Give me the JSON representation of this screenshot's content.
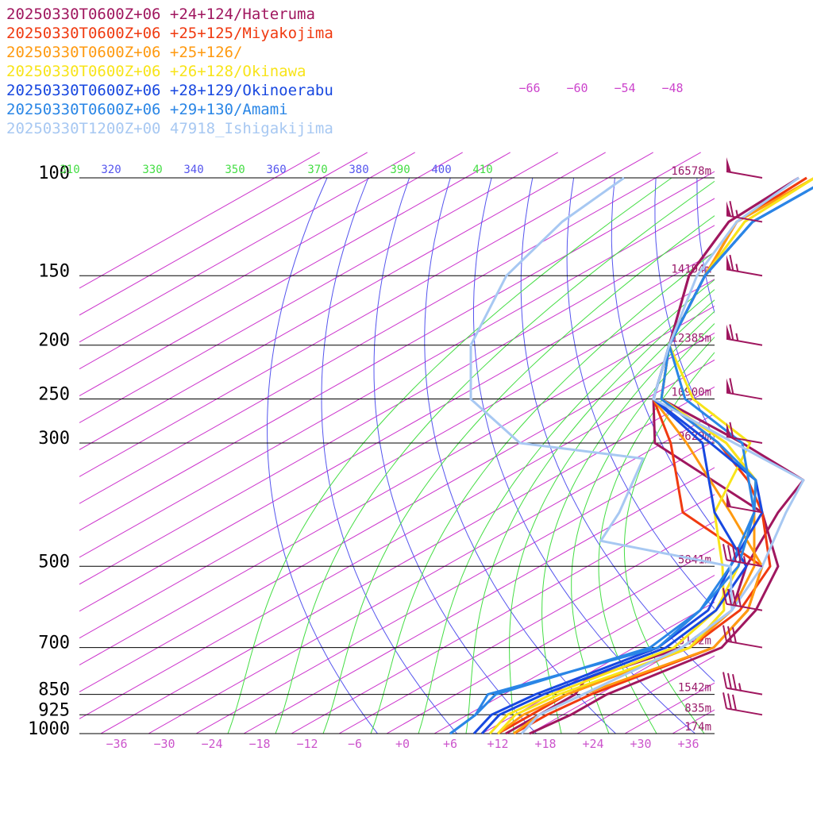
{
  "chart_data": {
    "type": "line",
    "chart_kind": "skew-T log-P sounding",
    "colors": {
      "isobar": "#000000",
      "isotherm": "#cc33cc",
      "dry_adiabat": "#5555ee",
      "moist_adiabat": "#44dd44",
      "wind_barb": "#a0175f"
    },
    "pressure_levels": [
      {
        "p": 100,
        "label": "100",
        "height": "16578m"
      },
      {
        "p": 150,
        "label": "150",
        "height": "14194m"
      },
      {
        "p": 200,
        "label": "200",
        "height": "12385m"
      },
      {
        "p": 250,
        "label": "250",
        "height": "10900m"
      },
      {
        "p": 300,
        "label": "300",
        "height": "9629m"
      },
      {
        "p": 500,
        "label": "500",
        "height": "5841m"
      },
      {
        "p": 700,
        "label": "700",
        "height": "3142m"
      },
      {
        "p": 850,
        "label": "850",
        "height": "1542m"
      },
      {
        "p": 925,
        "label": "925",
        "height": "835m"
      },
      {
        "p": 1000,
        "label": "1000",
        "height": "174m"
      }
    ],
    "temperature_ticks": [
      "−36",
      "−30",
      "−24",
      "−18",
      "−12",
      "−6",
      "+0",
      "+6",
      "+12",
      "+18",
      "+24",
      "+30",
      "+36"
    ],
    "temperature_tick_values": [
      -36,
      -30,
      -24,
      -18,
      -12,
      -6,
      0,
      6,
      12,
      18,
      24,
      30,
      36
    ],
    "theta_labels": [
      {
        "text": "310",
        "color": "#44dd44"
      },
      {
        "text": "320",
        "color": "#5555ee"
      },
      {
        "text": "330",
        "color": "#44dd44"
      },
      {
        "text": "340",
        "color": "#5555ee"
      },
      {
        "text": "350",
        "color": "#44dd44"
      },
      {
        "text": "360",
        "color": "#5555ee"
      },
      {
        "text": "370",
        "color": "#44dd44"
      },
      {
        "text": "380",
        "color": "#5555ee"
      },
      {
        "text": "390",
        "color": "#44dd44"
      },
      {
        "text": "400",
        "color": "#5555ee"
      },
      {
        "text": "410",
        "color": "#44dd44"
      }
    ],
    "top_isotherm_labels": [
      "−66",
      "−60",
      "−54",
      "−48"
    ],
    "series": [
      {
        "name": "20250330T0600Z+06 +24+124/Hateruma",
        "color": "#a0175f",
        "temperature": [
          [
            1000,
            16
          ],
          [
            925,
            17
          ],
          [
            850,
            17
          ],
          [
            700,
            21
          ],
          [
            600,
            17
          ],
          [
            500,
            10
          ],
          [
            400,
            -4
          ],
          [
            300,
            -33
          ],
          [
            250,
            -43
          ],
          [
            200,
            -53
          ],
          [
            150,
            -66
          ],
          [
            120,
            -73
          ],
          [
            100,
            -74
          ]
        ],
        "dewpoint": [
          [
            1000,
            13
          ],
          [
            925,
            13
          ],
          [
            850,
            13
          ],
          [
            800,
            11
          ],
          [
            700,
            16
          ],
          [
            600,
            14
          ],
          [
            500,
            6
          ],
          [
            400,
            -2
          ],
          [
            350,
            -6
          ],
          [
            300,
            -22
          ],
          [
            250,
            -42
          ],
          [
            200,
            -53
          ],
          [
            150,
            -66
          ],
          [
            120,
            -73
          ],
          [
            100,
            -74
          ]
        ]
      },
      {
        "name": "20250330T0600Z+06 +25+125/Miyakojima",
        "color": "#f03a10",
        "temperature": [
          [
            1000,
            14
          ],
          [
            925,
            14
          ],
          [
            850,
            15
          ],
          [
            700,
            20
          ],
          [
            600,
            16
          ],
          [
            500,
            8
          ],
          [
            400,
            -14
          ],
          [
            300,
            -31
          ],
          [
            250,
            -43
          ],
          [
            200,
            -53
          ],
          [
            150,
            -64
          ],
          [
            120,
            -72
          ],
          [
            100,
            -73
          ]
        ],
        "dewpoint": [
          [
            1000,
            12
          ],
          [
            925,
            12
          ],
          [
            850,
            12
          ],
          [
            700,
            17
          ],
          [
            600,
            15
          ],
          [
            500,
            9
          ],
          [
            400,
            -4
          ],
          [
            350,
            -13
          ],
          [
            300,
            -25
          ],
          [
            250,
            -42
          ],
          [
            200,
            -53
          ],
          [
            150,
            -64
          ],
          [
            120,
            -72
          ],
          [
            100,
            -73
          ]
        ]
      },
      {
        "name": "20250330T0600Z+06 +25+126/",
        "color": "#ff9a10",
        "temperature": [
          [
            1000,
            14
          ],
          [
            925,
            13
          ],
          [
            850,
            14
          ],
          [
            700,
            20
          ],
          [
            600,
            16
          ],
          [
            500,
            8
          ],
          [
            400,
            -8
          ],
          [
            300,
            -29
          ],
          [
            250,
            -43
          ],
          [
            200,
            -53
          ],
          [
            150,
            -64
          ],
          [
            120,
            -72
          ],
          [
            100,
            -72
          ]
        ],
        "dewpoint": [
          [
            1000,
            12
          ],
          [
            925,
            11
          ],
          [
            850,
            12
          ],
          [
            700,
            17
          ],
          [
            600,
            14
          ],
          [
            500,
            7
          ],
          [
            400,
            -5
          ],
          [
            350,
            -12
          ],
          [
            300,
            -24
          ],
          [
            250,
            -42
          ],
          [
            200,
            -53
          ],
          [
            150,
            -64
          ],
          [
            120,
            -72
          ],
          [
            100,
            -72
          ]
        ]
      },
      {
        "name": "20250330T0600Z+06 +26+128/Okinawa",
        "color": "#f8e41a",
        "temperature": [
          [
            1000,
            12
          ],
          [
            925,
            10
          ],
          [
            850,
            11
          ],
          [
            700,
            17
          ],
          [
            600,
            13
          ],
          [
            500,
            3
          ],
          [
            400,
            -10
          ],
          [
            300,
            -21
          ],
          [
            250,
            -38
          ],
          [
            200,
            -53
          ],
          [
            150,
            -64
          ],
          [
            120,
            -71
          ],
          [
            100,
            -72
          ]
        ],
        "dewpoint": [
          [
            1000,
            11
          ],
          [
            925,
            9
          ],
          [
            850,
            10
          ],
          [
            700,
            15
          ],
          [
            600,
            12
          ],
          [
            500,
            5
          ],
          [
            400,
            -5
          ],
          [
            350,
            -12
          ],
          [
            300,
            -24
          ],
          [
            250,
            -42
          ],
          [
            200,
            -53
          ],
          [
            150,
            -64
          ],
          [
            120,
            -71
          ],
          [
            100,
            -72
          ]
        ]
      },
      {
        "name": "20250330T0600Z+06 +28+129/Okinoerabu",
        "color": "#1848e0",
        "temperature": [
          [
            1000,
            10
          ],
          [
            925,
            8
          ],
          [
            850,
            9
          ],
          [
            700,
            14
          ],
          [
            600,
            12
          ],
          [
            500,
            6
          ],
          [
            400,
            -10
          ],
          [
            300,
            -27
          ],
          [
            250,
            -43
          ],
          [
            200,
            -53
          ],
          [
            150,
            -64
          ],
          [
            120,
            -70
          ],
          [
            100,
            -70
          ]
        ],
        "dewpoint": [
          [
            1000,
            9
          ],
          [
            925,
            7
          ],
          [
            850,
            8
          ],
          [
            700,
            13
          ],
          [
            600,
            11
          ],
          [
            500,
            4
          ],
          [
            400,
            -4
          ],
          [
            350,
            -12
          ],
          [
            300,
            -26
          ],
          [
            250,
            -43
          ],
          [
            200,
            -53
          ],
          [
            150,
            -64
          ],
          [
            120,
            -70
          ],
          [
            100,
            -70
          ]
        ]
      },
      {
        "name": "20250330T0600Z+06 +29+130/Amami",
        "color": "#2a86e6",
        "temperature": [
          [
            1000,
            6
          ],
          [
            925,
            5
          ],
          [
            850,
            2
          ],
          [
            700,
            13
          ],
          [
            600,
            10
          ],
          [
            500,
            5
          ],
          [
            400,
            -5
          ],
          [
            300,
            -22
          ],
          [
            250,
            -39
          ],
          [
            200,
            -53
          ],
          [
            150,
            -64
          ],
          [
            120,
            -70
          ],
          [
            100,
            -70
          ]
        ],
        "dewpoint": [
          [
            1000,
            6
          ],
          [
            925,
            5
          ],
          [
            850,
            3
          ],
          [
            700,
            12
          ],
          [
            600,
            10
          ],
          [
            500,
            4
          ],
          [
            400,
            -5
          ],
          [
            350,
            -12
          ],
          [
            300,
            -25
          ],
          [
            250,
            -42
          ],
          [
            200,
            -53
          ],
          [
            150,
            -64
          ],
          [
            120,
            -70
          ],
          [
            100,
            -70
          ]
        ]
      },
      {
        "name": "20250330T1200Z+00 47918_Ishigakijima",
        "color": "#a7c8f2",
        "temperature": [
          [
            1000,
            15
          ],
          [
            925,
            13
          ],
          [
            850,
            14
          ],
          [
            700,
            16
          ],
          [
            600,
            14
          ],
          [
            500,
            8
          ],
          [
            400,
            -1
          ],
          [
            350,
            -6
          ],
          [
            300,
            -23
          ],
          [
            250,
            -43
          ],
          [
            200,
            -53
          ],
          [
            150,
            -65
          ],
          [
            120,
            -72
          ],
          [
            100,
            -74
          ]
        ],
        "dewpoint": [
          [
            1000,
            15
          ],
          [
            925,
            13
          ],
          [
            850,
            14
          ],
          [
            700,
            16
          ],
          [
            600,
            14
          ],
          [
            500,
            4
          ],
          [
            450,
            -18
          ],
          [
            400,
            -22
          ],
          [
            320,
            -31
          ],
          [
            300,
            -50
          ],
          [
            250,
            -66
          ],
          [
            200,
            -78
          ],
          [
            150,
            -89
          ],
          [
            120,
            -94
          ],
          [
            100,
            -96
          ]
        ]
      }
    ],
    "wind_barbs": [
      {
        "p": 100,
        "speed_kt": 50
      },
      {
        "p": 120,
        "speed_kt": 65
      },
      {
        "p": 150,
        "speed_kt": 65
      },
      {
        "p": 200,
        "speed_kt": 65
      },
      {
        "p": 250,
        "speed_kt": 60
      },
      {
        "p": 300,
        "speed_kt": 60
      },
      {
        "p": 400,
        "speed_kt": 50
      },
      {
        "p": 500,
        "speed_kt": 45
      },
      {
        "p": 600,
        "speed_kt": 40
      },
      {
        "p": 700,
        "speed_kt": 30
      },
      {
        "p": 850,
        "speed_kt": 35
      },
      {
        "p": 925,
        "speed_kt": 30
      }
    ],
    "xlim": [
      -40,
      40
    ],
    "ylim": [
      1000,
      100
    ],
    "log_scale_y": true,
    "grid": true
  }
}
